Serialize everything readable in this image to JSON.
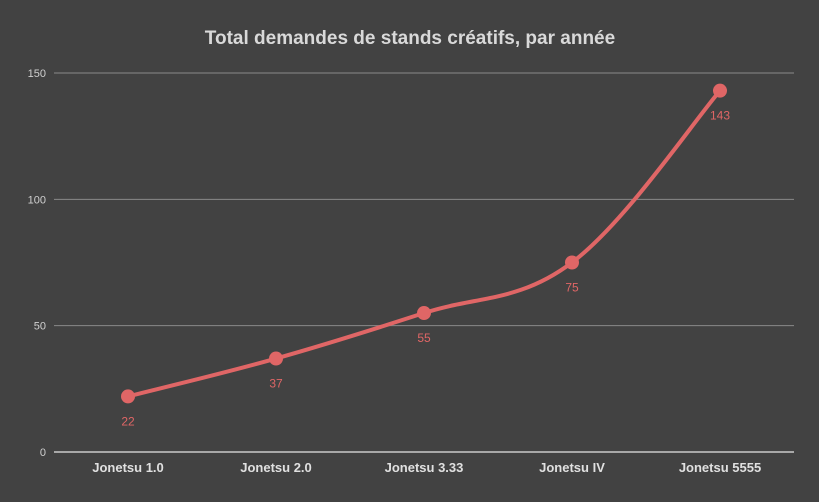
{
  "chart_data": {
    "type": "line",
    "title": "Total demandes de stands créatifs, par année",
    "categories": [
      "Jonetsu 1.0",
      "Jonetsu 2.0",
      "Jonetsu 3.33",
      "Jonetsu IV",
      "Jonetsu 5555"
    ],
    "series": [
      {
        "values": [
          22,
          37,
          55,
          75,
          143
        ],
        "color": "#e06666"
      }
    ],
    "data_labels": [
      "22",
      "37",
      "55",
      "75",
      "143"
    ],
    "yticks": [
      0,
      50,
      100,
      150
    ],
    "ylim": [
      0,
      150
    ],
    "grid": true,
    "legend": "none",
    "smooth": true
  }
}
